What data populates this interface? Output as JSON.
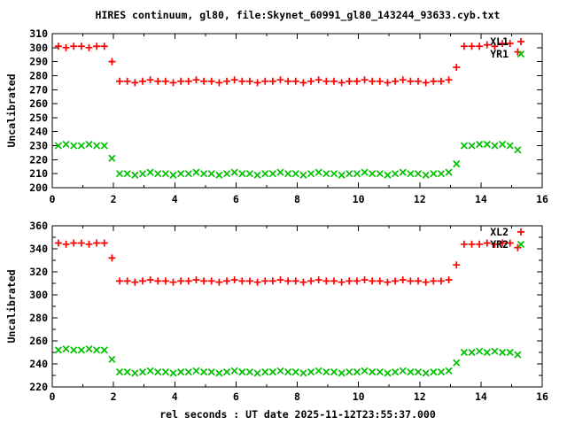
{
  "title": "HIRES continuum, gl80, file:Skynet_60991_gl80_143244_93633.cyb.txt",
  "xlabel": "rel seconds : UT date 2025-11-12T23:55:37.000",
  "colors": {
    "series_red": "#ff0000",
    "series_green": "#00c000",
    "axis": "#000000",
    "background": "#ffffff"
  },
  "chart_data": [
    {
      "type": "scatter",
      "panel": "top",
      "ylabel": "Uncalibrated",
      "ylim": [
        200,
        310
      ],
      "yticks_labeled": [
        200,
        210,
        220,
        230,
        240,
        250,
        260,
        270,
        280,
        290,
        300,
        310
      ],
      "yticks_minor": [],
      "xlim": [
        0,
        16
      ],
      "xticks_labeled": [
        0,
        2,
        4,
        6,
        8,
        10,
        12,
        14,
        16
      ],
      "xticks_minor": [
        1,
        3,
        5,
        7,
        9,
        11,
        13,
        15
      ],
      "grid": false,
      "legend_position": "top-right",
      "x": [
        0.2,
        0.45,
        0.7,
        0.95,
        1.2,
        1.45,
        1.7,
        1.95,
        2.2,
        2.45,
        2.7,
        2.95,
        3.2,
        3.45,
        3.7,
        3.95,
        4.2,
        4.45,
        4.7,
        4.95,
        5.2,
        5.45,
        5.7,
        5.95,
        6.2,
        6.45,
        6.7,
        6.95,
        7.2,
        7.45,
        7.7,
        7.95,
        8.2,
        8.45,
        8.7,
        8.95,
        9.2,
        9.45,
        9.7,
        9.95,
        10.2,
        10.45,
        10.7,
        10.95,
        11.2,
        11.45,
        11.7,
        11.95,
        12.2,
        12.45,
        12.7,
        12.95,
        13.2,
        13.45,
        13.7,
        13.95,
        14.2,
        14.45,
        14.7,
        14.95,
        15.2
      ],
      "series": [
        {
          "name": "XL1",
          "marker": "plus",
          "color": "#ff0000",
          "values": [
            301,
            300,
            301,
            301,
            300,
            301,
            301,
            290,
            276,
            276,
            275,
            276,
            277,
            276,
            276,
            275,
            276,
            276,
            277,
            276,
            276,
            275,
            276,
            277,
            276,
            276,
            275,
            276,
            276,
            277,
            276,
            276,
            275,
            276,
            277,
            276,
            276,
            275,
            276,
            276,
            277,
            276,
            276,
            275,
            276,
            277,
            276,
            276,
            275,
            276,
            276,
            277,
            286,
            301,
            301,
            301,
            302,
            301,
            303,
            303,
            297
          ]
        },
        {
          "name": "YR1",
          "marker": "cross",
          "color": "#00c000",
          "values": [
            230,
            231,
            230,
            230,
            231,
            230,
            230,
            221,
            210,
            210,
            209,
            210,
            211,
            210,
            210,
            209,
            210,
            210,
            211,
            210,
            210,
            209,
            210,
            211,
            210,
            210,
            209,
            210,
            210,
            211,
            210,
            210,
            209,
            210,
            211,
            210,
            210,
            209,
            210,
            210,
            211,
            210,
            210,
            209,
            210,
            211,
            210,
            210,
            209,
            210,
            210,
            211,
            217,
            230,
            230,
            231,
            231,
            230,
            231,
            230,
            227
          ]
        }
      ]
    },
    {
      "type": "scatter",
      "panel": "bottom",
      "ylabel": "Uncalibrated",
      "ylim": [
        220,
        360
      ],
      "yticks_labeled": [
        220,
        240,
        260,
        280,
        300,
        320,
        340,
        360
      ],
      "yticks_minor": [
        230,
        250,
        270,
        290,
        310,
        330,
        350
      ],
      "xlim": [
        0,
        16
      ],
      "xticks_labeled": [
        0,
        2,
        4,
        6,
        8,
        10,
        12,
        14,
        16
      ],
      "xticks_minor": [
        1,
        3,
        5,
        7,
        9,
        11,
        13,
        15
      ],
      "grid": false,
      "legend_position": "top-right",
      "x": [
        0.2,
        0.45,
        0.7,
        0.95,
        1.2,
        1.45,
        1.7,
        1.95,
        2.2,
        2.45,
        2.7,
        2.95,
        3.2,
        3.45,
        3.7,
        3.95,
        4.2,
        4.45,
        4.7,
        4.95,
        5.2,
        5.45,
        5.7,
        5.95,
        6.2,
        6.45,
        6.7,
        6.95,
        7.2,
        7.45,
        7.7,
        7.95,
        8.2,
        8.45,
        8.7,
        8.95,
        9.2,
        9.45,
        9.7,
        9.95,
        10.2,
        10.45,
        10.7,
        10.95,
        11.2,
        11.45,
        11.7,
        11.95,
        12.2,
        12.45,
        12.7,
        12.95,
        13.2,
        13.45,
        13.7,
        13.95,
        14.2,
        14.45,
        14.7,
        14.95,
        15.2
      ],
      "series": [
        {
          "name": "XL2",
          "marker": "plus",
          "color": "#ff0000",
          "values": [
            345,
            344,
            345,
            345,
            344,
            345,
            345,
            332,
            312,
            312,
            311,
            312,
            313,
            312,
            312,
            311,
            312,
            312,
            313,
            312,
            312,
            311,
            312,
            313,
            312,
            312,
            311,
            312,
            312,
            313,
            312,
            312,
            311,
            312,
            313,
            312,
            312,
            311,
            312,
            312,
            313,
            312,
            312,
            311,
            312,
            313,
            312,
            312,
            311,
            312,
            312,
            313,
            326,
            344,
            344,
            344,
            345,
            344,
            345,
            345,
            341
          ]
        },
        {
          "name": "YR2",
          "marker": "cross",
          "color": "#00c000",
          "values": [
            252,
            253,
            252,
            252,
            253,
            252,
            252,
            244,
            233,
            233,
            232,
            233,
            234,
            233,
            233,
            232,
            233,
            233,
            234,
            233,
            233,
            232,
            233,
            234,
            233,
            233,
            232,
            233,
            233,
            234,
            233,
            233,
            232,
            233,
            234,
            233,
            233,
            232,
            233,
            233,
            234,
            233,
            233,
            232,
            233,
            234,
            233,
            233,
            232,
            233,
            233,
            234,
            241,
            250,
            250,
            251,
            250,
            251,
            250,
            250,
            248
          ]
        }
      ]
    }
  ]
}
